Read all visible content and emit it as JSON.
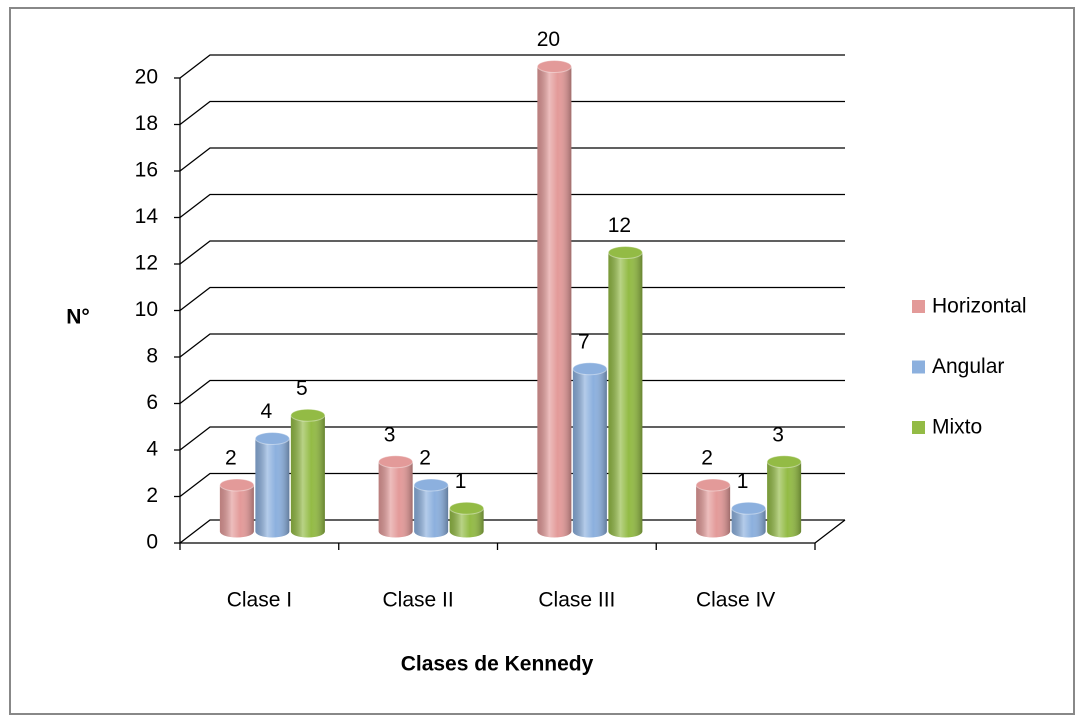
{
  "chart_data": {
    "type": "bar3d",
    "xlabel": "Clases de Kennedy",
    "ylabel": "N°",
    "categories": [
      "Clase I",
      "Clase II",
      "Clase III",
      "Clase IV"
    ],
    "series": [
      {
        "name": "Horizontal",
        "color": "#e39a99",
        "values": [
          2,
          3,
          20,
          2
        ]
      },
      {
        "name": "Angular",
        "color": "#8cb0de",
        "values": [
          4,
          2,
          7,
          1
        ]
      },
      {
        "name": "Mixto",
        "color": "#93bb45",
        "values": [
          5,
          1,
          12,
          3
        ]
      }
    ],
    "ylim": [
      0,
      20
    ],
    "yticks": [
      0,
      2,
      4,
      6,
      8,
      10,
      12,
      14,
      16,
      18,
      20
    ],
    "grid": true,
    "legend": "right"
  }
}
